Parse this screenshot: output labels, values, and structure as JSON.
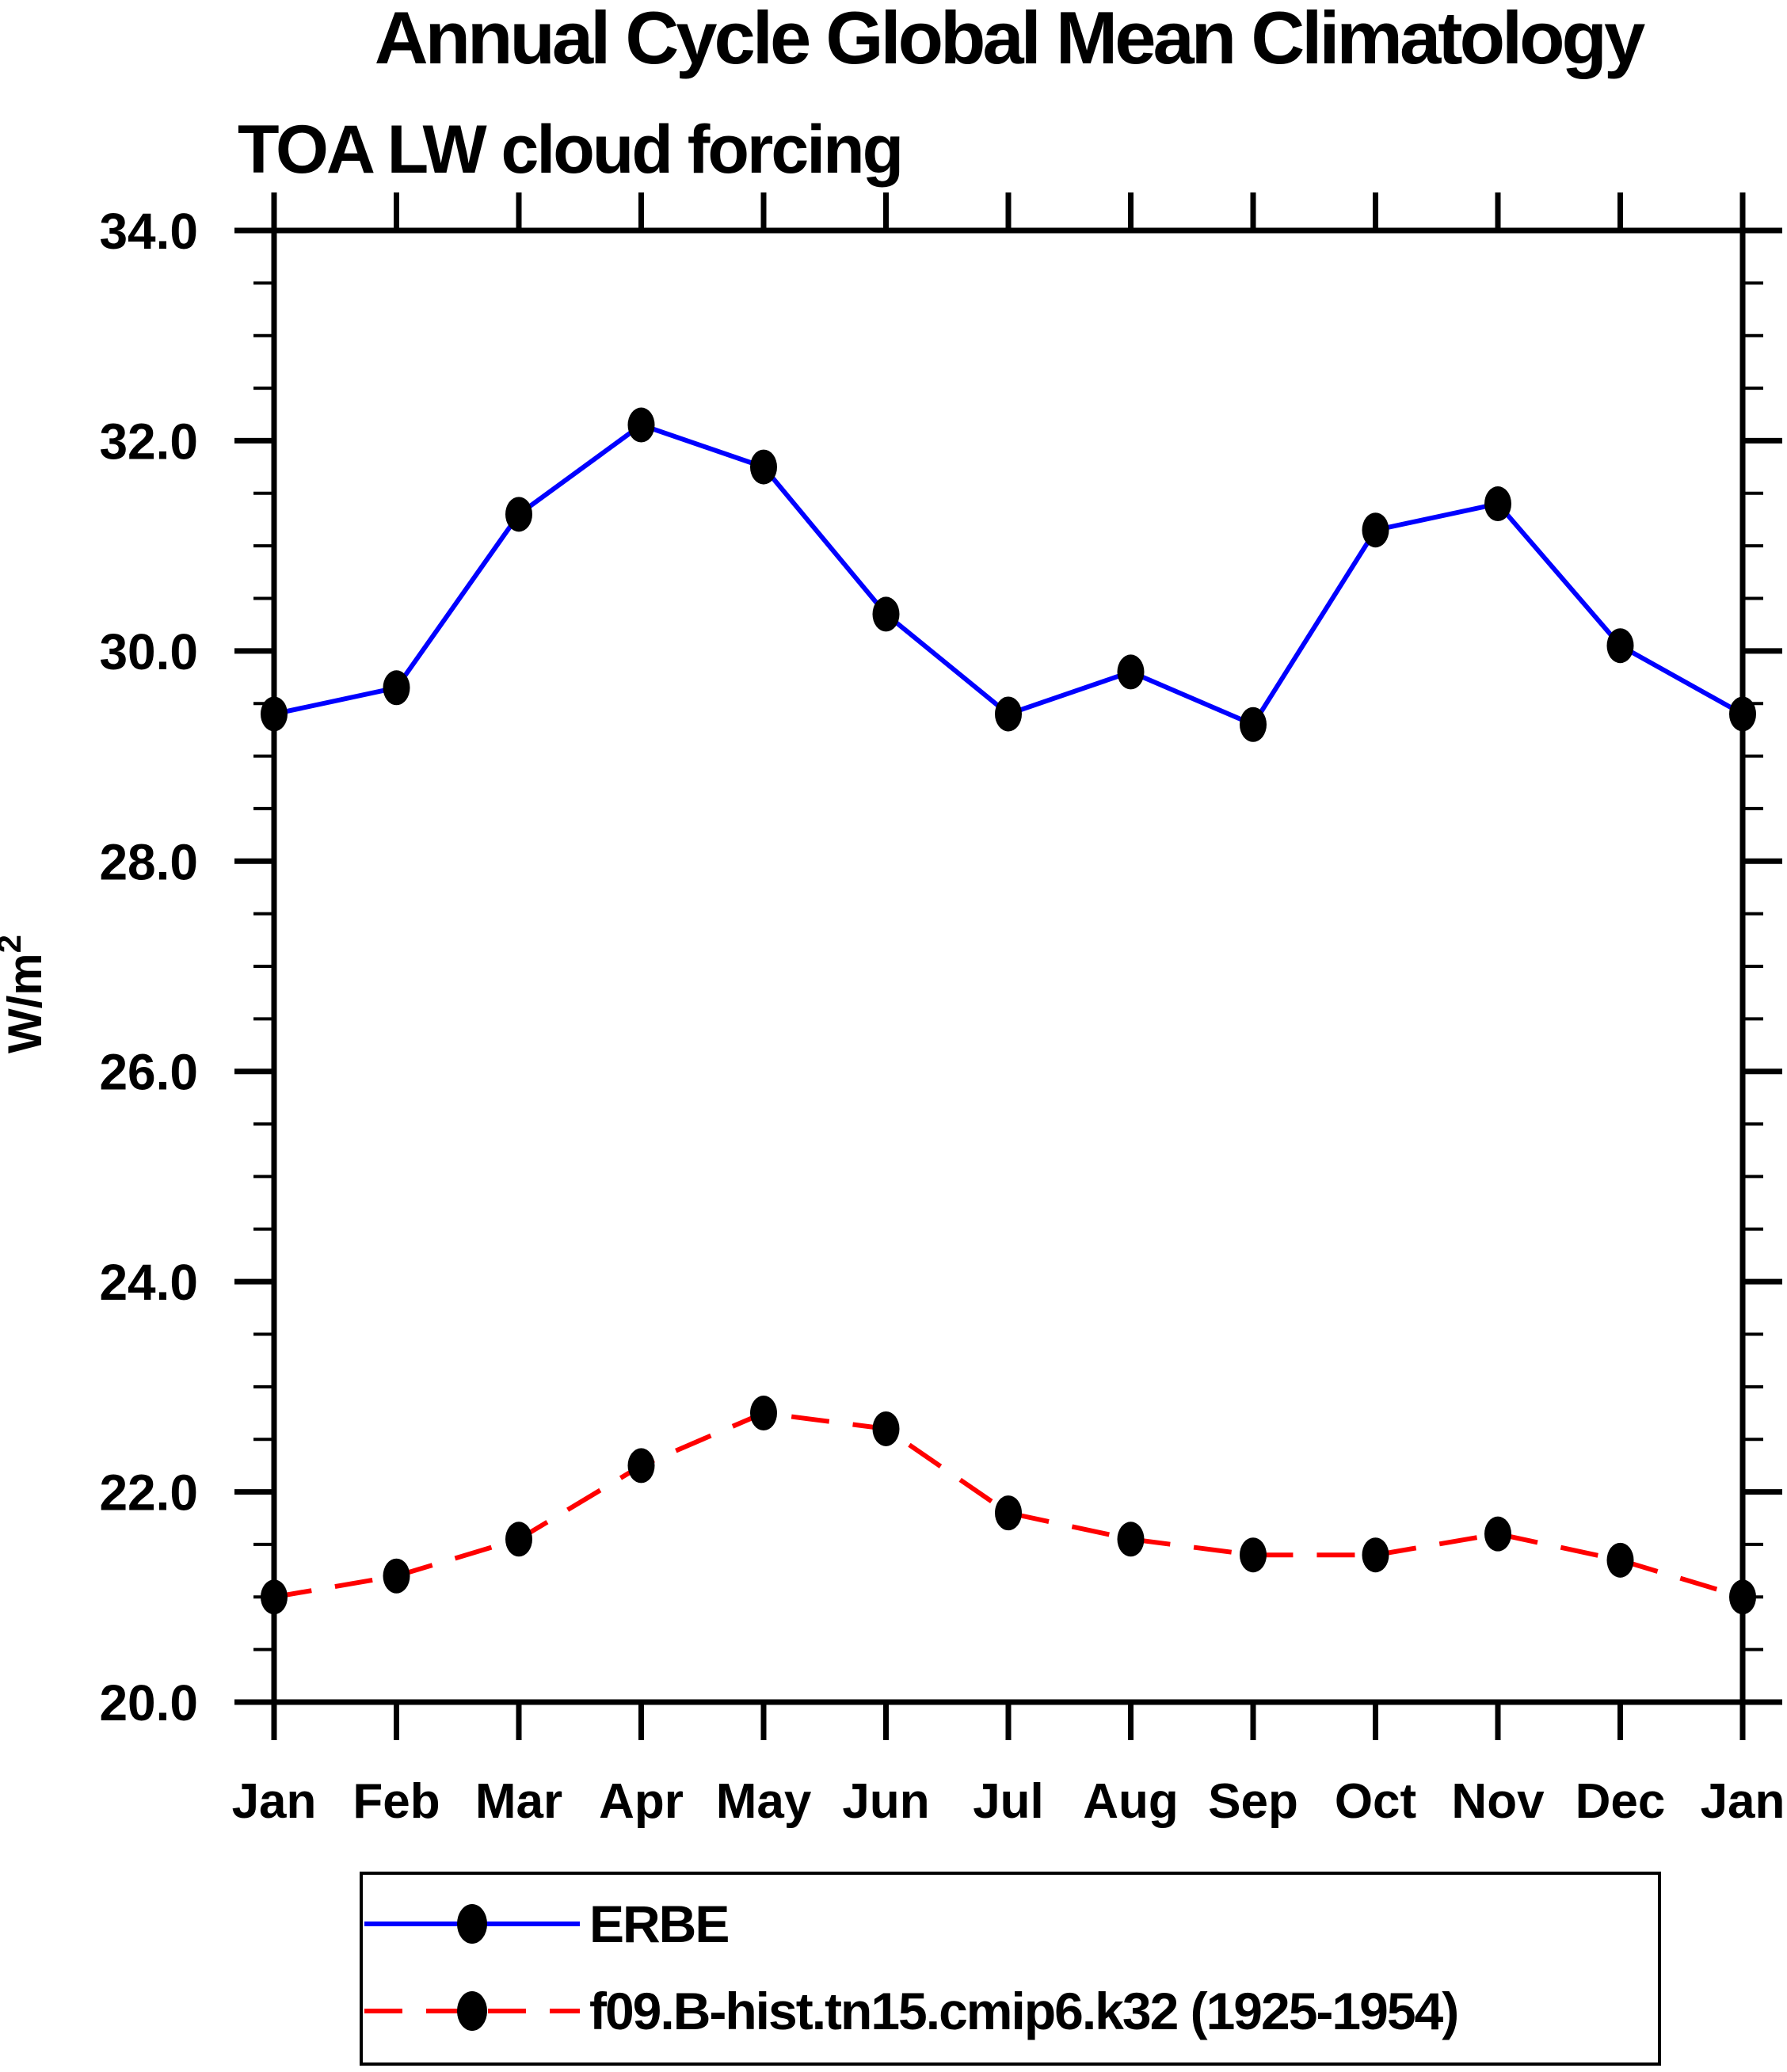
{
  "title": "Annual Cycle Global Mean Climatology",
  "subtitle": "TOA LW cloud forcing",
  "chart_data": {
    "type": "line",
    "title": "Annual Cycle Global Mean Climatology",
    "subtitle": "TOA LW cloud forcing",
    "categories": [
      "Jan",
      "Feb",
      "Mar",
      "Apr",
      "May",
      "Jun",
      "Jul",
      "Aug",
      "Sep",
      "Oct",
      "Nov",
      "Dec",
      "Jan"
    ],
    "series": [
      {
        "name": "ERBE",
        "color": "#0000ff",
        "line_style": "solid",
        "marker": "filled-ellipse",
        "marker_color": "#000000",
        "values": [
          29.4,
          29.65,
          31.3,
          32.15,
          31.75,
          30.35,
          29.4,
          29.8,
          29.3,
          31.15,
          31.4,
          30.05,
          29.4
        ]
      },
      {
        "name": "f09.B-hist.tn15.cmip6.k32 (1925-1954)",
        "color": "#ff0000",
        "line_style": "dashed",
        "marker": "filled-ellipse",
        "marker_color": "#000000",
        "values": [
          21.0,
          21.2,
          21.55,
          22.25,
          22.75,
          22.6,
          21.8,
          21.55,
          21.4,
          21.4,
          21.6,
          21.35,
          21.0
        ]
      }
    ],
    "xlabel": "",
    "ylabel_base": "W/m",
    "ylabel_exponent": "2",
    "ylim": [
      20.0,
      34.0
    ],
    "y_major_tick_step": 2.0,
    "y_minor_tick_step": 0.5,
    "y_tick_label_format": "one-decimal",
    "grid": false,
    "legend_position": "bottom",
    "axis_color": "#000000",
    "background_color": "#ffffff"
  }
}
